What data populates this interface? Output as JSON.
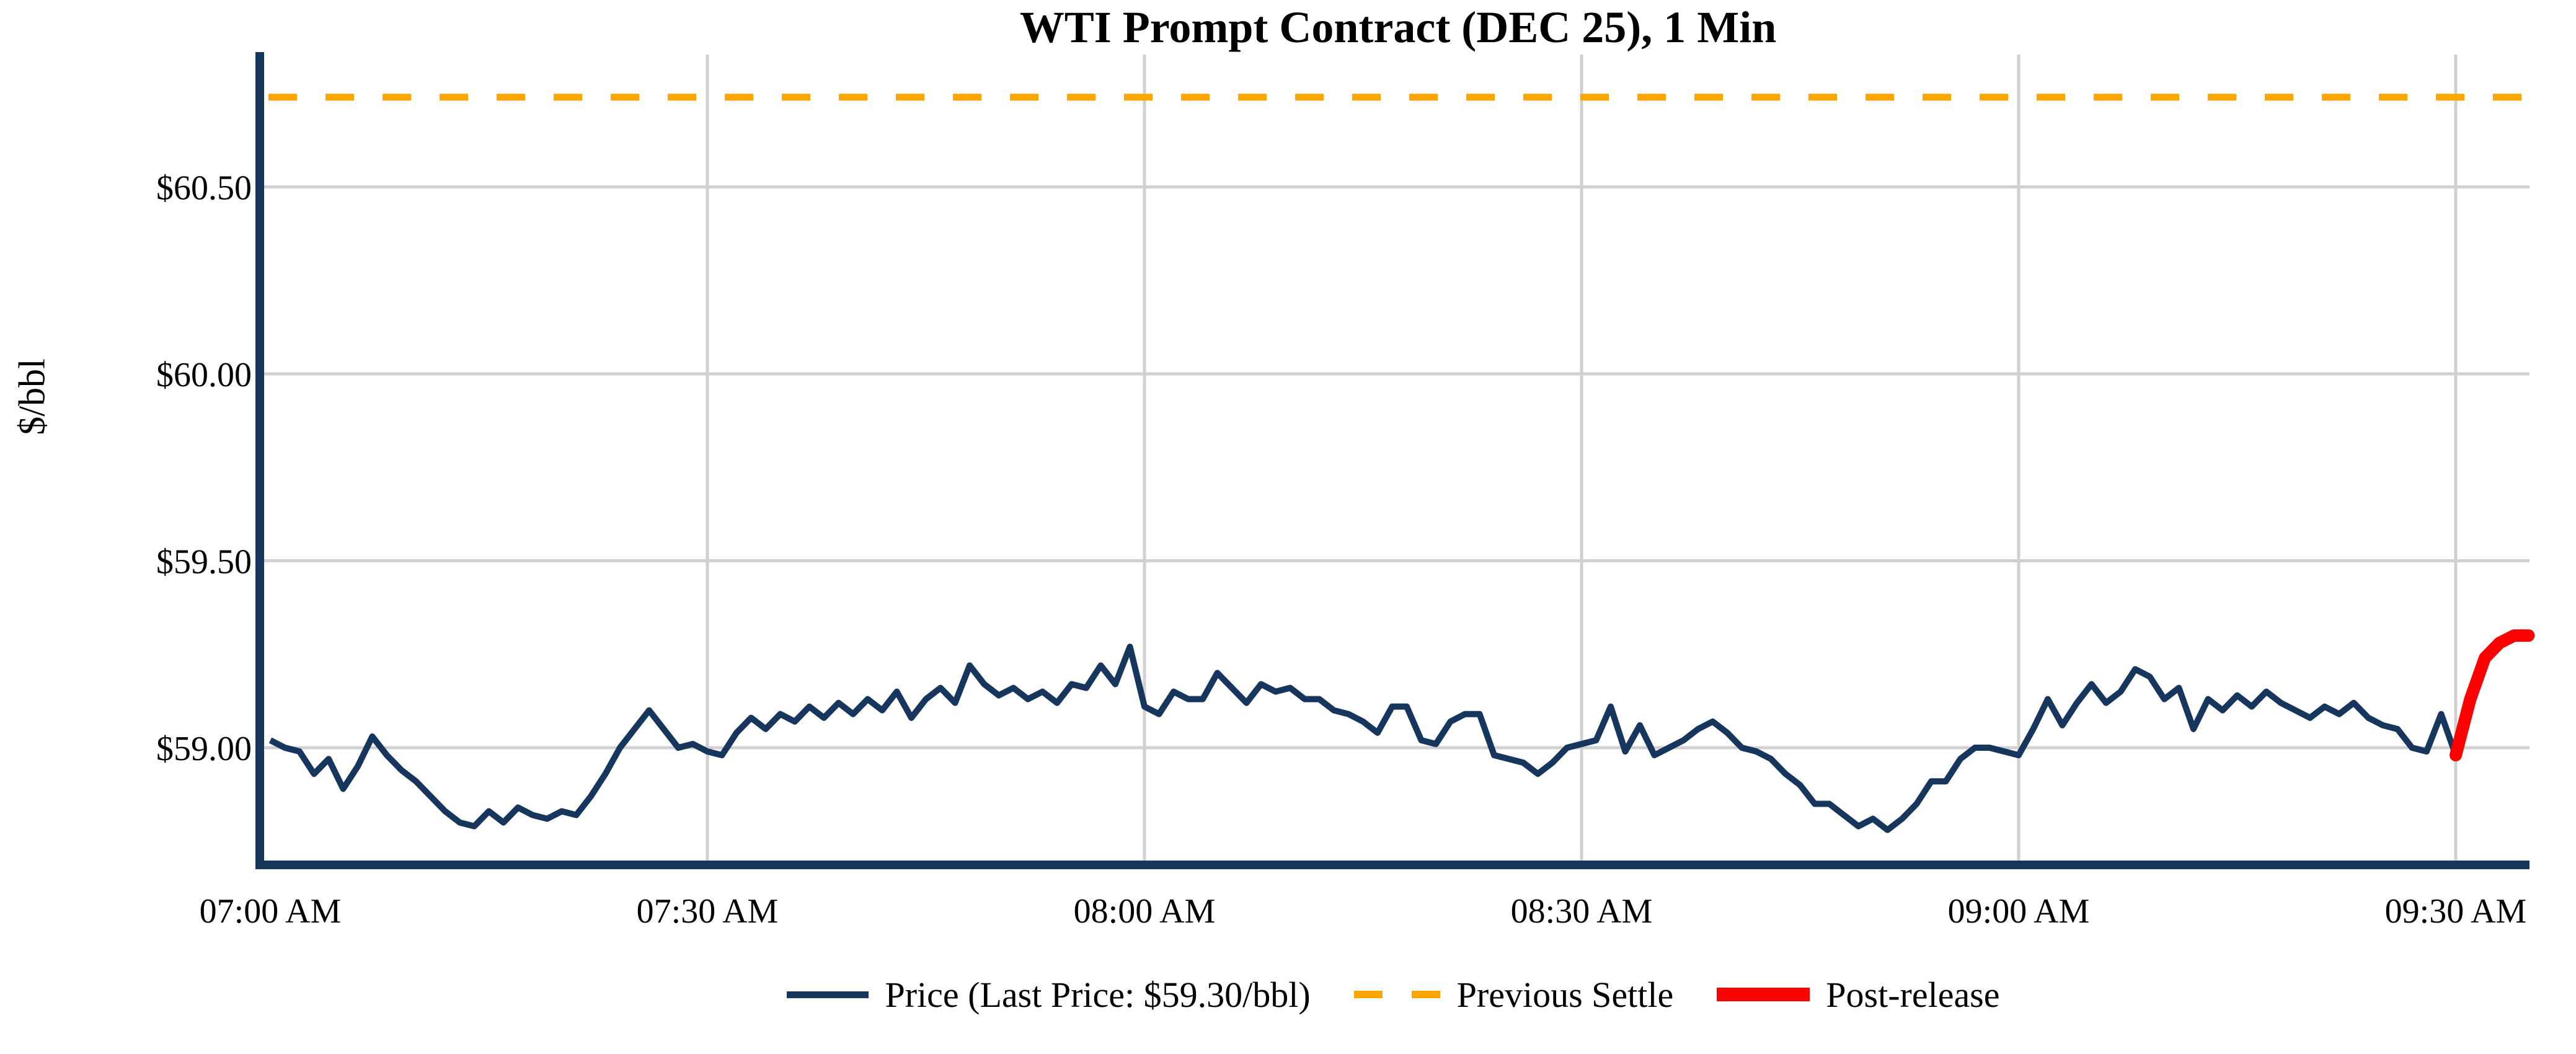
{
  "title": "WTI Prompt Contract (DEC 25), 1 Min",
  "y_axis_label": "$/bbl",
  "legend": {
    "price_label": "Price (Last Price: $59.30/bbl)",
    "prev_settle_label": "Previous Settle",
    "post_release_label": "Post-release"
  },
  "colors": {
    "price_line": "#17365D",
    "prev_settle_line": "#FFA500",
    "post_release_line": "#FF0000",
    "grid": "#D0D0D0",
    "spine": "#17365D",
    "text": "#000000",
    "background": "#FFFFFF"
  },
  "chart_data": {
    "type": "line",
    "title": "WTI Prompt Contract (DEC 25), 1 Min",
    "xlabel": "",
    "ylabel": "$/bbl",
    "x_tick_labels": [
      "07:00 AM",
      "07:30 AM",
      "08:00 AM",
      "08:30 AM",
      "09:00 AM",
      "09:30 AM"
    ],
    "x_tick_minutes": [
      0,
      30,
      60,
      90,
      120,
      150
    ],
    "y_tick_labels": [
      "$59.00",
      "$59.50",
      "$60.00",
      "$60.50"
    ],
    "y_tick_values": [
      59.0,
      59.5,
      60.0,
      60.5
    ],
    "ylim": [
      58.7,
      60.85
    ],
    "xlim_minutes": [
      0,
      155
    ],
    "grid": true,
    "legend_position": "bottom-center",
    "previous_settle_value": 60.74,
    "last_price_value": 59.3,
    "series": [
      {
        "name": "Price",
        "color_key": "price_line",
        "style": "solid",
        "stroke_width": 10,
        "start_minute": 0,
        "values": [
          59.02,
          59.0,
          58.99,
          58.93,
          58.97,
          58.89,
          58.95,
          59.03,
          58.98,
          58.94,
          58.91,
          58.87,
          58.83,
          58.8,
          58.79,
          58.83,
          58.8,
          58.84,
          58.82,
          58.81,
          58.83,
          58.82,
          58.87,
          58.93,
          59.0,
          59.05,
          59.1,
          59.05,
          59.0,
          59.01,
          58.99,
          58.98,
          59.04,
          59.08,
          59.05,
          59.09,
          59.07,
          59.11,
          59.08,
          59.12,
          59.09,
          59.13,
          59.1,
          59.15,
          59.08,
          59.13,
          59.16,
          59.12,
          59.22,
          59.17,
          59.14,
          59.16,
          59.13,
          59.15,
          59.12,
          59.17,
          59.16,
          59.22,
          59.17,
          59.27,
          59.11,
          59.09,
          59.15,
          59.13,
          59.13,
          59.2,
          59.16,
          59.12,
          59.17,
          59.15,
          59.16,
          59.13,
          59.13,
          59.1,
          59.09,
          59.07,
          59.04,
          59.11,
          59.11,
          59.02,
          59.01,
          59.07,
          59.09,
          59.09,
          58.98,
          58.97,
          58.96,
          58.93,
          58.96,
          59.0,
          59.01,
          59.02,
          59.11,
          58.99,
          59.06,
          58.98,
          59.0,
          59.02,
          59.05,
          59.07,
          59.04,
          59.0,
          58.99,
          58.97,
          58.93,
          58.9,
          58.85,
          58.85,
          58.82,
          58.79,
          58.81,
          58.78,
          58.81,
          58.85,
          58.91,
          58.91,
          58.97,
          59.0,
          59.0,
          58.99,
          58.98,
          59.05,
          59.13,
          59.06,
          59.12,
          59.17,
          59.12,
          59.15,
          59.21,
          59.19,
          59.13,
          59.16,
          59.05,
          59.13,
          59.1,
          59.14,
          59.11,
          59.15,
          59.12,
          59.1,
          59.08,
          59.11,
          59.09,
          59.12,
          59.08,
          59.06,
          59.05,
          59.0,
          58.99,
          59.09,
          58.98
        ]
      },
      {
        "name": "Post-release",
        "color_key": "post_release_line",
        "style": "solid",
        "stroke_width": 20,
        "start_minute": 150,
        "values": [
          58.98,
          59.13,
          59.24,
          59.28,
          59.3,
          59.3
        ]
      }
    ]
  }
}
